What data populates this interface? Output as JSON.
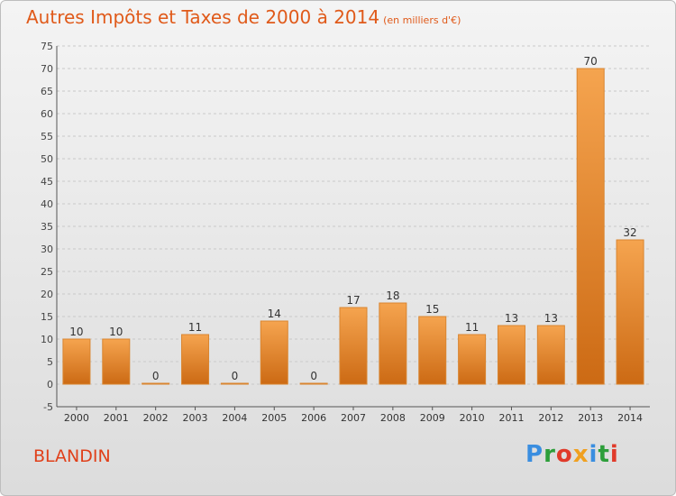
{
  "title": "Autres Impôts et Taxes de 2000 à 2014",
  "unit": "(en milliers d'€)",
  "commune": "BLANDIN",
  "logo": {
    "text": "Proxiti",
    "colors": [
      "#3a8ee0",
      "#2d9e3a",
      "#e03a2a",
      "#f0a020",
      "#3a8ee0",
      "#2d9e3a",
      "#e03a2a"
    ]
  },
  "colors": {
    "bar_top": "#f5a44f",
    "bar_bottom": "#cc6a14",
    "title": "#e05a1a"
  },
  "chart_data": {
    "type": "bar",
    "categories": [
      "2000",
      "2001",
      "2002",
      "2003",
      "2004",
      "2005",
      "2006",
      "2007",
      "2008",
      "2009",
      "2010",
      "2011",
      "2012",
      "2013",
      "2014"
    ],
    "values": [
      10,
      10,
      0,
      11,
      0,
      14,
      0,
      17,
      18,
      15,
      11,
      13,
      13,
      70,
      32
    ],
    "ylim": [
      -5,
      75
    ],
    "yticks": [
      -5,
      0,
      5,
      10,
      15,
      20,
      25,
      30,
      35,
      40,
      45,
      50,
      55,
      60,
      65,
      70,
      75
    ],
    "grid": true
  }
}
